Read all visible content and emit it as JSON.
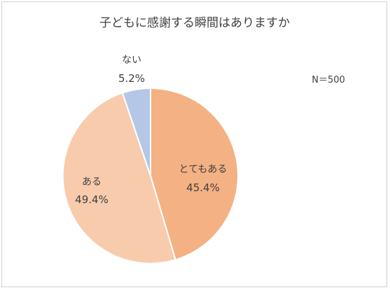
{
  "chart_data": {
    "type": "pie",
    "title": "子どもに感謝する瞬間はありますか",
    "note": "N＝500",
    "categories": [
      "とてもある",
      "ある",
      "ない"
    ],
    "values": [
      45.4,
      49.4,
      5.2
    ],
    "value_labels": [
      "45.4%",
      "49.4%",
      "5.2%"
    ],
    "colors": [
      "#F4B183",
      "#F8CBAD",
      "#B4C7E7"
    ],
    "start_angle_deg": 0,
    "direction": "clockwise",
    "legend": "none",
    "label_placement": [
      "inside",
      "inside",
      "outside-top"
    ]
  }
}
